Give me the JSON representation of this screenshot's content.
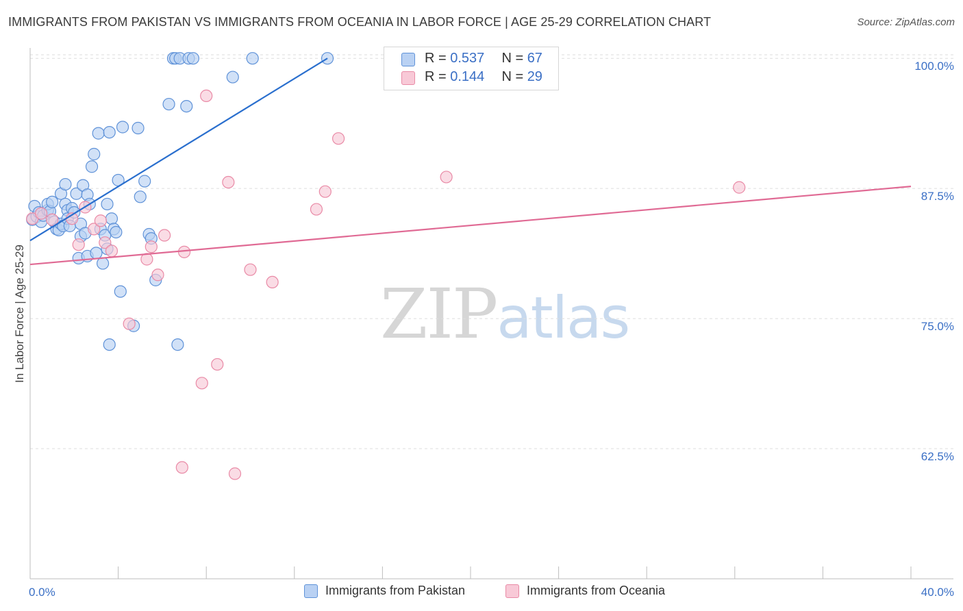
{
  "title": "IMMIGRANTS FROM PAKISTAN VS IMMIGRANTS FROM OCEANIA IN LABOR FORCE | AGE 25-29 CORRELATION CHART",
  "source": "Source: ZipAtlas.com",
  "watermark": {
    "zip": "ZIP",
    "atlas": "atlas"
  },
  "colors": {
    "blue_fill": "#b9d1f3",
    "blue_stroke": "#5f92d8",
    "blue_line": "#2a6fce",
    "pink_fill": "#f8c9d7",
    "pink_stroke": "#e98aa6",
    "pink_line": "#e06a94",
    "tick_label": "#3a6fc5",
    "grid": "#dedede"
  },
  "legend": {
    "r_label": "R =",
    "n_label": "N =",
    "series": [
      {
        "r": "0.537",
        "n": "67"
      },
      {
        "r": "0.144",
        "n": "29"
      }
    ]
  },
  "bottom_legend": [
    "Immigrants from Pakistan",
    "Immigrants from Oceania"
  ],
  "chart_data": {
    "type": "scatter",
    "title": "IMMIGRANTS FROM PAKISTAN VS IMMIGRANTS FROM OCEANIA IN LABOR FORCE | AGE 25-29 CORRELATION CHART",
    "xlabel": "",
    "ylabel": "In Labor Force | Age 25-29",
    "xlim": [
      0,
      40
    ],
    "ylim": [
      50,
      101
    ],
    "x_tick_labels": [
      "0.0%",
      "40.0%"
    ],
    "y_ticks": [
      62.5,
      75.0,
      87.5,
      100.0
    ],
    "y_tick_labels": [
      "62.5%",
      "75.0%",
      "87.5%",
      "100.0%"
    ],
    "grid": true,
    "legend_placement": "top-center",
    "series": [
      {
        "name": "Immigrants from Pakistan",
        "color": "#5f92d8",
        "r": 0.537,
        "n": 67,
        "trend": {
          "x": [
            0.0,
            13.5
          ],
          "y": [
            82.5,
            100.0
          ]
        },
        "points": [
          [
            0.1,
            84.5
          ],
          [
            0.2,
            85.8
          ],
          [
            0.3,
            84.8
          ],
          [
            0.4,
            85.2
          ],
          [
            0.5,
            84.3
          ],
          [
            0.6,
            84.9
          ],
          [
            0.8,
            85.4
          ],
          [
            0.8,
            86.0
          ],
          [
            0.9,
            85.3
          ],
          [
            1.0,
            86.2
          ],
          [
            1.1,
            84.3
          ],
          [
            1.2,
            83.6
          ],
          [
            1.3,
            83.5
          ],
          [
            1.4,
            84.1
          ],
          [
            1.4,
            87.0
          ],
          [
            1.5,
            83.9
          ],
          [
            1.6,
            86.0
          ],
          [
            1.6,
            87.9
          ],
          [
            1.7,
            85.4
          ],
          [
            1.7,
            84.6
          ],
          [
            1.8,
            83.9
          ],
          [
            1.9,
            85.6
          ],
          [
            2.0,
            85.2
          ],
          [
            2.1,
            87.0
          ],
          [
            2.2,
            80.8
          ],
          [
            2.3,
            82.9
          ],
          [
            2.3,
            84.1
          ],
          [
            2.4,
            87.8
          ],
          [
            2.5,
            83.2
          ],
          [
            2.6,
            86.9
          ],
          [
            2.6,
            81.0
          ],
          [
            2.7,
            86.0
          ],
          [
            2.8,
            89.6
          ],
          [
            2.9,
            90.8
          ],
          [
            3.0,
            81.3
          ],
          [
            3.1,
            92.8
          ],
          [
            3.2,
            83.6
          ],
          [
            3.3,
            80.3
          ],
          [
            3.4,
            83.0
          ],
          [
            3.5,
            81.7
          ],
          [
            3.5,
            86.0
          ],
          [
            3.6,
            72.5
          ],
          [
            3.6,
            92.9
          ],
          [
            3.7,
            84.6
          ],
          [
            3.8,
            83.6
          ],
          [
            3.9,
            83.3
          ],
          [
            4.0,
            88.3
          ],
          [
            4.2,
            93.4
          ],
          [
            4.1,
            77.6
          ],
          [
            4.7,
            74.3
          ],
          [
            4.9,
            93.3
          ],
          [
            5.0,
            86.7
          ],
          [
            5.2,
            88.2
          ],
          [
            5.4,
            83.1
          ],
          [
            5.5,
            82.7
          ],
          [
            5.7,
            78.7
          ],
          [
            6.3,
            95.6
          ],
          [
            6.5,
            100.0
          ],
          [
            6.6,
            100.0
          ],
          [
            6.7,
            72.5
          ],
          [
            6.8,
            100.0
          ],
          [
            7.1,
            95.4
          ],
          [
            7.2,
            100.0
          ],
          [
            7.4,
            100.0
          ],
          [
            9.2,
            98.2
          ],
          [
            10.1,
            100.0
          ],
          [
            13.5,
            100.0
          ]
        ]
      },
      {
        "name": "Immigrants from Oceania",
        "color": "#e98aa6",
        "r": 0.144,
        "n": 29,
        "trend": {
          "x": [
            0.0,
            40.0
          ],
          "y": [
            80.2,
            87.7
          ]
        },
        "points": [
          [
            0.1,
            84.6
          ],
          [
            0.5,
            85.1
          ],
          [
            1.0,
            84.5
          ],
          [
            1.9,
            84.6
          ],
          [
            2.2,
            82.1
          ],
          [
            2.5,
            85.7
          ],
          [
            2.9,
            83.6
          ],
          [
            3.2,
            84.4
          ],
          [
            3.4,
            82.3
          ],
          [
            3.7,
            81.5
          ],
          [
            4.5,
            74.5
          ],
          [
            5.3,
            80.7
          ],
          [
            5.5,
            81.9
          ],
          [
            5.8,
            79.2
          ],
          [
            6.1,
            83.0
          ],
          [
            6.9,
            60.7
          ],
          [
            7.0,
            81.4
          ],
          [
            7.8,
            68.8
          ],
          [
            8.0,
            96.4
          ],
          [
            8.5,
            70.6
          ],
          [
            9.0,
            88.1
          ],
          [
            9.3,
            60.1
          ],
          [
            10.0,
            79.7
          ],
          [
            11.0,
            78.5
          ],
          [
            13.0,
            85.5
          ],
          [
            13.4,
            87.2
          ],
          [
            14.0,
            92.3
          ],
          [
            18.9,
            88.6
          ],
          [
            32.2,
            87.6
          ]
        ]
      }
    ]
  }
}
